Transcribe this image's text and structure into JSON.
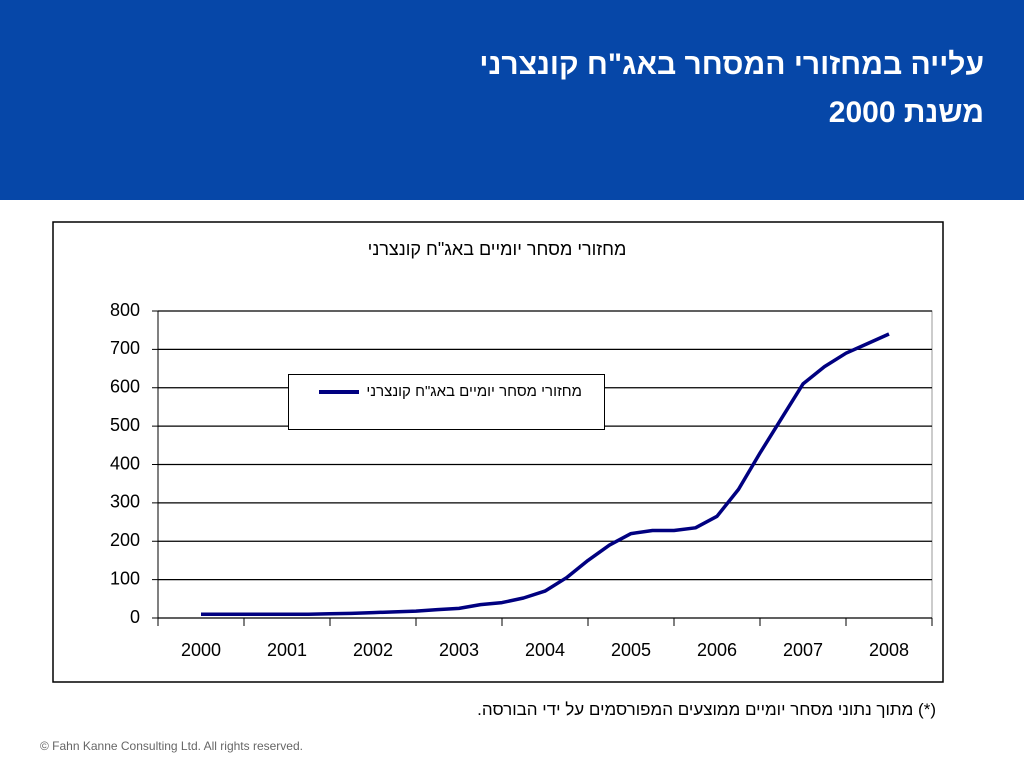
{
  "header": {
    "title": [
      "עלייה במחזורי המסחר באג\"ח קונצרני",
      "משנת 2000"
    ]
  },
  "chart_data": {
    "type": "line",
    "title": "מחזורי מסחר יומיים באג\"ח קונצרני",
    "categories": [
      "2000",
      null,
      null,
      null,
      "2001",
      null,
      null,
      null,
      "2002",
      null,
      null,
      null,
      "2003",
      null,
      null,
      null,
      "2004",
      null,
      null,
      null,
      "2005",
      null,
      null,
      null,
      "2006",
      null,
      null,
      null,
      "2007",
      null,
      null,
      null,
      "2008"
    ],
    "series": [
      {
        "name": "מחזורי מסחר יומיים באג\"ח קונצרני",
        "color": "#000080",
        "values": [
          10,
          10,
          10,
          10,
          10,
          10,
          11,
          12,
          14,
          16,
          18,
          22,
          25,
          35,
          40,
          52,
          70,
          105,
          150,
          190,
          220,
          228,
          228,
          235,
          265,
          335,
          430,
          520,
          610,
          655,
          690,
          715,
          740
        ]
      }
    ],
    "ylim": [
      0,
      800
    ],
    "yticks": [
      0,
      100,
      200,
      300,
      400,
      500,
      600,
      700,
      800
    ],
    "grid": true,
    "legend": "upper-left"
  },
  "footnote": "(*) מתוך נתוני מסחר יומיים ממוצעים המפורסמים על ידי הבורסה.",
  "copyright": "© Fahn Kanne Consulting Ltd. All rights reserved."
}
